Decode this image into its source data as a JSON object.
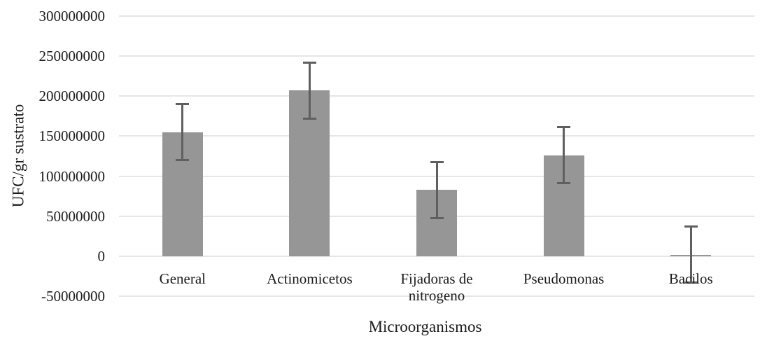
{
  "chart_data": {
    "type": "bar",
    "title": "",
    "xlabel": "Microorganismos",
    "ylabel": "UFC/gr sustrato",
    "categories": [
      "General",
      "Actinomicetos",
      "Fijadoras de nitrogeno",
      "Pseudomonas",
      "Bacilos"
    ],
    "categories_display": [
      [
        "General"
      ],
      [
        "Actinomicetos"
      ],
      [
        "Fijadoras de",
        "nitrogeno"
      ],
      [
        "Pseudomonas"
      ],
      [
        "Bacilos"
      ]
    ],
    "values": [
      155000000,
      207000000,
      83000000,
      126000000,
      2000000
    ],
    "error_bars": [
      35000000,
      35000000,
      35000000,
      35000000,
      35000000
    ],
    "ylim": [
      -50000000,
      300000000
    ],
    "ytick_step": 50000000,
    "y_ticks": [
      "300000000",
      "250000000",
      "200000000",
      "150000000",
      "100000000",
      "50000000",
      "0",
      "-50000000"
    ],
    "grid": true,
    "legend": "none",
    "bar_color": "#969696",
    "error_bar_color": "#5f5f5f",
    "gridline_color": "#e6e6e6",
    "text_color": "#1b1b1b",
    "background_color": "#ffffff"
  }
}
